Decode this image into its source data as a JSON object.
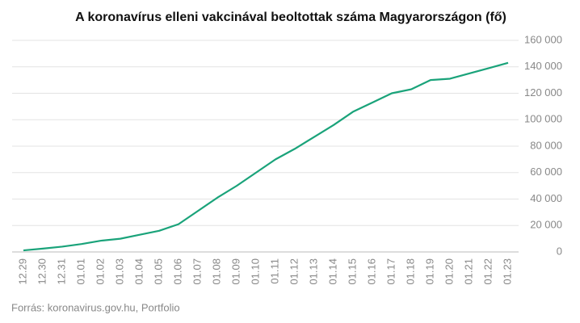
{
  "chart_data": {
    "type": "line",
    "title": "A koronavírus elleni vakcinával beoltottak száma Magyarországon (fő)",
    "source": "Forrás: koronavirus.gov.hu, Portfolio",
    "categories": [
      "12.29",
      "12.30",
      "12.31",
      "01.01",
      "01.02",
      "01.03",
      "01.04",
      "01.05",
      "01.06",
      "01.07",
      "01.08",
      "01.09",
      "01.10",
      "01.11",
      "01.12",
      "01.13",
      "01.14",
      "01.15",
      "01.16",
      "01.17",
      "01.18",
      "01.19",
      "01.20",
      "01.21",
      "01.22",
      "01.23"
    ],
    "series": [
      {
        "color": "#1aa37a",
        "values": [
          1200,
          2500,
          4000,
          6000,
          8500,
          10000,
          13000,
          16000,
          21000,
          31000,
          41000,
          50000,
          60000,
          70000,
          78000,
          87000,
          96000,
          106000,
          113000,
          120000,
          123000,
          130000,
          131000,
          135000,
          139000,
          143000
        ]
      }
    ],
    "ylim": [
      0,
      160000
    ],
    "yticks": [
      0,
      {
        "value": 20000,
        "label": "20 000"
      },
      {
        "value": 40000,
        "label": "40 000"
      },
      {
        "value": 60000,
        "label": "60 000"
      },
      {
        "value": 80000,
        "label": "80 000"
      },
      {
        "value": 100000,
        "label": "100 000"
      },
      {
        "value": 120000,
        "label": "120 000"
      },
      {
        "value": 140000,
        "label": "140 000"
      },
      {
        "value": 160000,
        "label": "160 000"
      }
    ],
    "grid": true
  }
}
